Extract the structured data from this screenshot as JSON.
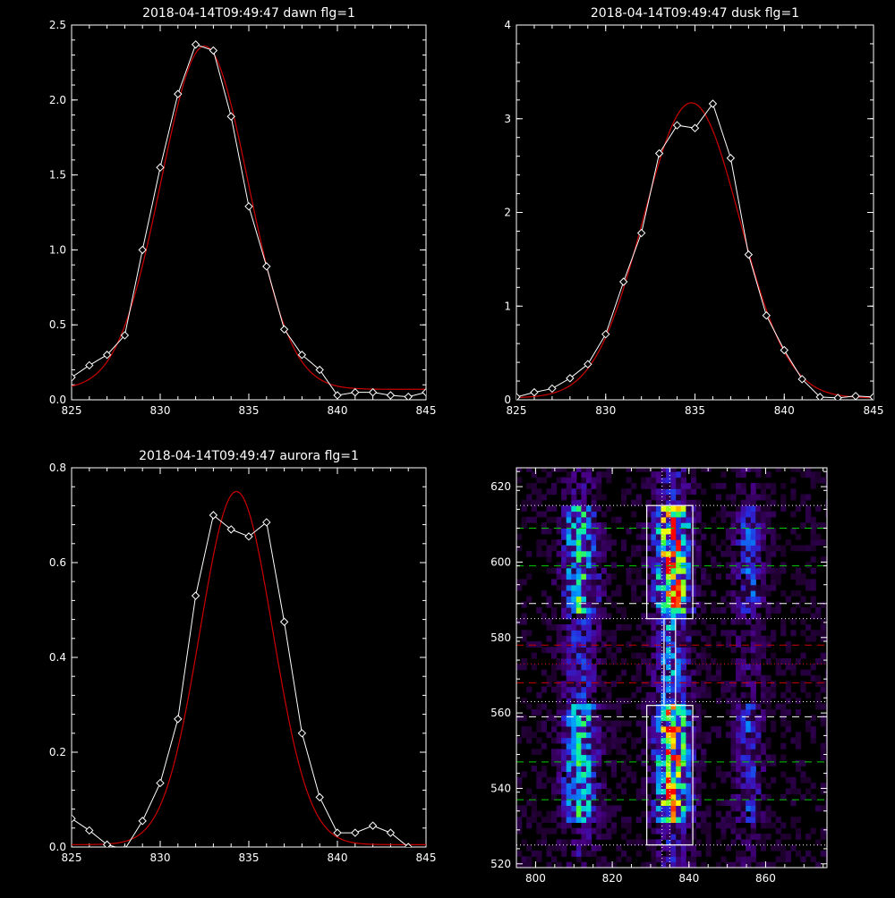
{
  "colors": {
    "background": "#000000",
    "axes": "#ffffff",
    "observed": "#ffffff",
    "fit": "#cc0000"
  },
  "chart_data": [
    {
      "type": "line",
      "title": "2018-04-14T09:49:47 dawn flg=1",
      "xlim": [
        825,
        845
      ],
      "ylim": [
        0,
        2.5
      ],
      "xticks": [
        "825",
        "830",
        "835",
        "840",
        "845"
      ],
      "yticks": [
        "0.0",
        "0.5",
        "1.0",
        "1.5",
        "2.0",
        "2.5"
      ],
      "series": [
        {
          "role": "observed",
          "marker": "diamond",
          "x": [
            825,
            826,
            827,
            828,
            829,
            830,
            831,
            832,
            833,
            834,
            835,
            836,
            837,
            838,
            839,
            840,
            841,
            842,
            843,
            844,
            845
          ],
          "y": [
            0.15,
            0.23,
            0.3,
            0.43,
            1.0,
            1.55,
            2.04,
            2.37,
            2.33,
            1.89,
            1.29,
            0.89,
            0.47,
            0.3,
            0.2,
            0.03,
            0.05,
            0.05,
            0.03,
            0.02,
            0.05
          ]
        },
        {
          "role": "fit",
          "gaussian": {
            "amp": 2.29,
            "mu": 832.5,
            "sigma": 2.45,
            "offset": 0.07
          }
        }
      ]
    },
    {
      "type": "line",
      "title": "2018-04-14T09:49:47 dusk flg=1",
      "xlim": [
        825,
        845
      ],
      "ylim": [
        0,
        4
      ],
      "xticks": [
        "825",
        "830",
        "835",
        "840",
        "845"
      ],
      "yticks": [
        "0",
        "1",
        "2",
        "3",
        "4"
      ],
      "series": [
        {
          "role": "observed",
          "marker": "diamond",
          "x": [
            825,
            826,
            827,
            828,
            829,
            830,
            831,
            832,
            833,
            834,
            835,
            836,
            837,
            838,
            839,
            840,
            841,
            842,
            843,
            844,
            845
          ],
          "y": [
            0.03,
            0.08,
            0.12,
            0.23,
            0.38,
            0.7,
            1.26,
            1.78,
            2.63,
            2.93,
            2.9,
            3.16,
            2.58,
            1.55,
            0.9,
            0.53,
            0.22,
            0.03,
            0.02,
            0.04,
            0.03
          ]
        },
        {
          "role": "fit",
          "gaussian": {
            "amp": 3.15,
            "mu": 834.8,
            "sigma": 2.7,
            "offset": 0.02
          }
        }
      ]
    },
    {
      "type": "line",
      "title": "2018-04-14T09:49:47 aurora flg=1",
      "xlim": [
        825,
        845
      ],
      "ylim": [
        0,
        0.8
      ],
      "xticks": [
        "825",
        "830",
        "835",
        "840",
        "845"
      ],
      "yticks": [
        "0.0",
        "0.2",
        "0.4",
        "0.6",
        "0.8"
      ],
      "series": [
        {
          "role": "observed",
          "marker": "diamond",
          "x": [
            825,
            826,
            827,
            828,
            829,
            830,
            831,
            832,
            833,
            834,
            835,
            836,
            837,
            838,
            839,
            840,
            841,
            842,
            843,
            844,
            845
          ],
          "y": [
            0.06,
            0.035,
            0.005,
            -0.005,
            0.055,
            0.135,
            0.27,
            0.53,
            0.7,
            0.67,
            0.655,
            0.685,
            0.475,
            0.24,
            0.105,
            0.03,
            0.03,
            0.045,
            0.03,
            0.0,
            -0.01
          ]
        },
        {
          "role": "fit",
          "gaussian": {
            "amp": 0.745,
            "mu": 834.3,
            "sigma": 2.05,
            "offset": 0.005
          }
        }
      ]
    },
    {
      "type": "heatmap",
      "title": "",
      "xlim": [
        795,
        876
      ],
      "ylim": [
        519,
        625
      ],
      "xticks": [
        "800",
        "820",
        "840",
        "860"
      ],
      "yticks": [
        "520",
        "540",
        "560",
        "580",
        "600",
        "620"
      ],
      "emission_columns": [
        {
          "x": 811,
          "peak": 0.62,
          "width": 3.0
        },
        {
          "x": 835,
          "peak": 1.0,
          "width": 3.0
        },
        {
          "x": 855,
          "peak": 0.32,
          "width": 2.5
        }
      ],
      "boxes": [
        {
          "x": [
            829,
            841
          ],
          "y": [
            585,
            615
          ]
        },
        {
          "x": [
            829,
            841
          ],
          "y": [
            525,
            562
          ]
        },
        {
          "x": [
            833.5,
            836.5
          ],
          "y": [
            562,
            585
          ]
        }
      ],
      "vertical_dotted": [
        833,
        835
      ],
      "horizontal_lines": [
        {
          "y": 615,
          "style": "dotted",
          "color": "#ffffff"
        },
        {
          "y": 609,
          "style": "dashed",
          "color": "#00cc00"
        },
        {
          "y": 599,
          "style": "dashed",
          "color": "#00cc00"
        },
        {
          "y": 589,
          "style": "dashed",
          "color": "#ffffff"
        },
        {
          "y": 585,
          "style": "dotted",
          "color": "#ffffff"
        },
        {
          "y": 578,
          "style": "dashed",
          "color": "#cc0000"
        },
        {
          "y": 573,
          "style": "dotted",
          "color": "#cc0000"
        },
        {
          "y": 568,
          "style": "dashed",
          "color": "#cc0000"
        },
        {
          "y": 563,
          "style": "dotted",
          "color": "#ffffff"
        },
        {
          "y": 559,
          "style": "dashed",
          "color": "#ffffff"
        },
        {
          "y": 547,
          "style": "dashed",
          "color": "#00cc00"
        },
        {
          "y": 537,
          "style": "dashed",
          "color": "#00cc00"
        },
        {
          "y": 525,
          "style": "dotted",
          "color": "#ffffff"
        }
      ]
    }
  ]
}
